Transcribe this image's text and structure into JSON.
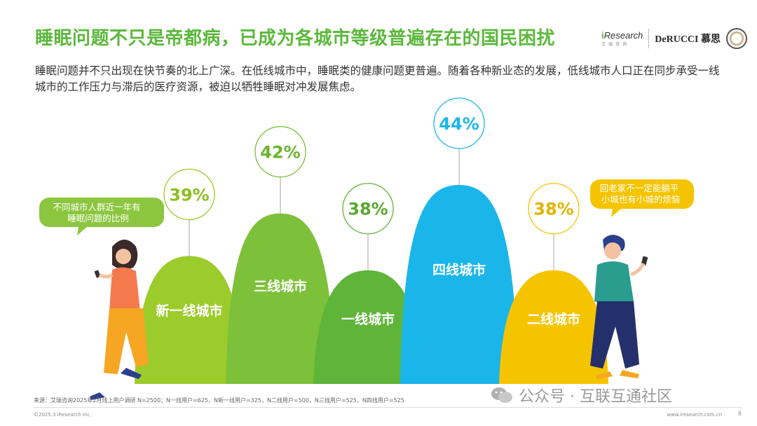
{
  "header": {
    "title": "睡眠问题不只是帝都病，已成为各城市等级普遍存在的国民困扰",
    "subtitle": "睡眠问题并不只出现在快节奏的北上广深。在低线城市中，睡眠类的健康问题更普遍。随着各种新业态的发展，低线城市人口正在同步承受一线城市的工作压力与滞后的医疗资源，被迫以牺牲睡眠对冲发展焦虑。"
  },
  "logos": {
    "iresearch_name_prefix": "i",
    "iresearch_name": "Research",
    "iresearch_sub": "艾瑞咨询",
    "derucci": "DeRUCCI 慕思"
  },
  "colors": {
    "accent_green": "#5cb83c",
    "tier1": "#5fb53a",
    "new_tier1": "#9ccc2c",
    "tier2": "#f5c400",
    "tier3": "#7dc13a",
    "tier4": "#1ab6ea"
  },
  "chart_data": {
    "type": "bar",
    "categories": [
      "新一线城市",
      "三线城市",
      "一线城市",
      "四线城市",
      "二线城市"
    ],
    "values": [
      39,
      42,
      38,
      44,
      38
    ],
    "value_labels": [
      "39%",
      "42%",
      "38%",
      "44%",
      "38%"
    ],
    "bar_colors": [
      "#9ccc2c",
      "#7dc13a",
      "#5fb53a",
      "#1ab6ea",
      "#f5c400"
    ],
    "label_colors": [
      "#8cbf1e",
      "#6ab42e",
      "#5aa832",
      "#1ab6ea",
      "#e0b400"
    ],
    "ylim": [
      0,
      50
    ],
    "annotations": {
      "left_bubble": "不同城市人群近一年有睡眠问题的比例",
      "right_bubble": "回老家不一定能躺平小城也有小城的烦恼"
    }
  },
  "footer": {
    "source": "来源：艾瑞咨询2025年2月线上用户调研 N=2500；N一线用户=625，N新一线用户=325，N二线用户=500，N三线用户=525，N四线用户=525",
    "copyright": "©2025.3 iResearch Inc.",
    "url": "www.iresearch.com.cn",
    "page": "8"
  },
  "watermark": {
    "text": "公众号 · 互联互通社区"
  }
}
